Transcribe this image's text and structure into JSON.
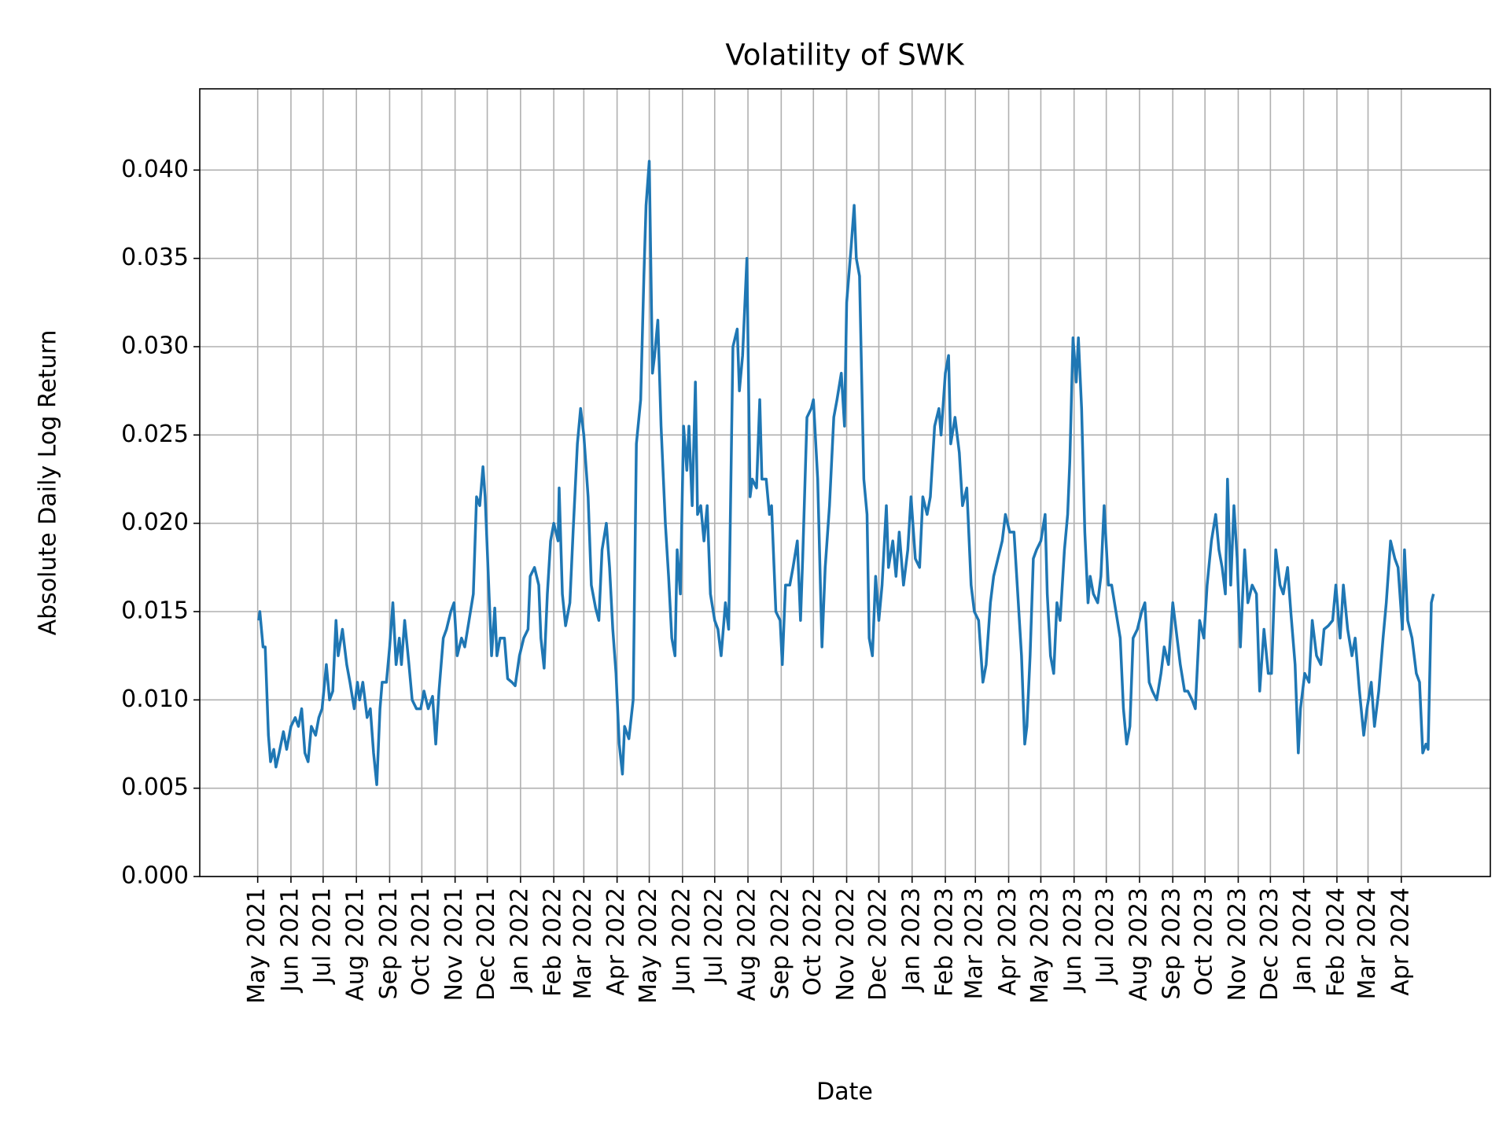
{
  "chart_data": {
    "type": "line",
    "title": "Volatility of SWK",
    "x_label": "Date",
    "y_label": "Absolute Daily Log Return",
    "color": "#1f77b4",
    "grid": true,
    "xlim": [
      -54,
      1149
    ],
    "ylim": [
      0,
      0.0446
    ],
    "xticks": [
      {
        "value": 0,
        "label": "May 2021"
      },
      {
        "value": 31,
        "label": "Jun 2021"
      },
      {
        "value": 61,
        "label": "Jul 2021"
      },
      {
        "value": 92,
        "label": "Aug 2021"
      },
      {
        "value": 123,
        "label": "Sep 2021"
      },
      {
        "value": 153,
        "label": "Oct 2021"
      },
      {
        "value": 184,
        "label": "Nov 2021"
      },
      {
        "value": 214,
        "label": "Dec 2021"
      },
      {
        "value": 245,
        "label": "Jan 2022"
      },
      {
        "value": 276,
        "label": "Feb 2022"
      },
      {
        "value": 304,
        "label": "Mar 2022"
      },
      {
        "value": 335,
        "label": "Apr 2022"
      },
      {
        "value": 365,
        "label": "May 2022"
      },
      {
        "value": 396,
        "label": "Jun 2022"
      },
      {
        "value": 426,
        "label": "Jul 2022"
      },
      {
        "value": 457,
        "label": "Aug 2022"
      },
      {
        "value": 488,
        "label": "Sep 2022"
      },
      {
        "value": 518,
        "label": "Oct 2022"
      },
      {
        "value": 549,
        "label": "Nov 2022"
      },
      {
        "value": 579,
        "label": "Dec 2022"
      },
      {
        "value": 610,
        "label": "Jan 2023"
      },
      {
        "value": 641,
        "label": "Feb 2023"
      },
      {
        "value": 669,
        "label": "Mar 2023"
      },
      {
        "value": 700,
        "label": "Apr 2023"
      },
      {
        "value": 730,
        "label": "May 2023"
      },
      {
        "value": 761,
        "label": "Jun 2023"
      },
      {
        "value": 791,
        "label": "Jul 2023"
      },
      {
        "value": 822,
        "label": "Aug 2023"
      },
      {
        "value": 853,
        "label": "Sep 2023"
      },
      {
        "value": 883,
        "label": "Oct 2023"
      },
      {
        "value": 914,
        "label": "Nov 2023"
      },
      {
        "value": 944,
        "label": "Dec 2023"
      },
      {
        "value": 975,
        "label": "Jan 2024"
      },
      {
        "value": 1006,
        "label": "Feb 2024"
      },
      {
        "value": 1035,
        "label": "Mar 2024"
      },
      {
        "value": 1066,
        "label": "Apr 2024"
      }
    ],
    "yticks": [
      {
        "value": 0,
        "label": "0.000"
      },
      {
        "value": 0.005,
        "label": "0.005"
      },
      {
        "value": 0.01,
        "label": "0.010"
      },
      {
        "value": 0.015,
        "label": "0.015"
      },
      {
        "value": 0.02,
        "label": "0.020"
      },
      {
        "value": 0.025,
        "label": "0.025"
      },
      {
        "value": 0.03,
        "label": "0.030"
      },
      {
        "value": 0.035,
        "label": "0.035"
      },
      {
        "value": 0.04,
        "label": "0.040"
      }
    ],
    "x": [
      1,
      2,
      5,
      7,
      10,
      12,
      15,
      17,
      20,
      24,
      27,
      31,
      35,
      38,
      41,
      44,
      47,
      50,
      54,
      57,
      60,
      64,
      67,
      70,
      73,
      75,
      79,
      83,
      86,
      90,
      93,
      95,
      98,
      102,
      105,
      108,
      111,
      114,
      116,
      120,
      123,
      126,
      129,
      132,
      134,
      137,
      141,
      144,
      148,
      152,
      155,
      159,
      163,
      166,
      169,
      173,
      176,
      180,
      183,
      186,
      190,
      193,
      197,
      201,
      204,
      207,
      210,
      212,
      215,
      218,
      221,
      223,
      226,
      230,
      233,
      237,
      240,
      244,
      248,
      252,
      254,
      258,
      262,
      264,
      267,
      270,
      273,
      276,
      280,
      281,
      284,
      287,
      291,
      294,
      298,
      301,
      304,
      308,
      311,
      315,
      318,
      321,
      325,
      328,
      331,
      334,
      337,
      340,
      342,
      346,
      350,
      353,
      357,
      360,
      362,
      365,
      368,
      370,
      373,
      376,
      380,
      383,
      386,
      389,
      391,
      394,
      397,
      400,
      402,
      405,
      408,
      410,
      413,
      416,
      419,
      422,
      426,
      429,
      432,
      436,
      439,
      443,
      447,
      449,
      452,
      456,
      459,
      461,
      465,
      468,
      470,
      474,
      477,
      479,
      483,
      487,
      489,
      492,
      496,
      499,
      503,
      506,
      508,
      512,
      516,
      518,
      522,
      526,
      529,
      533,
      537,
      540,
      544,
      547,
      549,
      553,
      556,
      558,
      561,
      565,
      568,
      570,
      573,
      576,
      579,
      582,
      586,
      588,
      592,
      595,
      598,
      602,
      606,
      609,
      613,
      617,
      620,
      624,
      627,
      631,
      635,
      637,
      641,
      644,
      646,
      650,
      654,
      657,
      661,
      665,
      668,
      672,
      676,
      679,
      683,
      686,
      690,
      694,
      697,
      701,
      705,
      708,
      712,
      715,
      717,
      720,
      723,
      726,
      730,
      734,
      736,
      739,
      742,
      745,
      748,
      752,
      755,
      757,
      760,
      763,
      765,
      768,
      771,
      774,
      776,
      779,
      783,
      786,
      789,
      793,
      796,
      800,
      804,
      807,
      810,
      813,
      816,
      820,
      824,
      827,
      831,
      834,
      838,
      842,
      845,
      849,
      853,
      856,
      860,
      864,
      867,
      871,
      874,
      878,
      882,
      885,
      889,
      893,
      896,
      899,
      902,
      904,
      907,
      910,
      913,
      916,
      920,
      923,
      927,
      931,
      934,
      938,
      942,
      945,
      949,
      953,
      956,
      960,
      963,
      967,
      970,
      972,
      976,
      980,
      983,
      987,
      991,
      994,
      998,
      1002,
      1005,
      1009,
      1012,
      1016,
      1020,
      1023,
      1027,
      1031,
      1034,
      1038,
      1041,
      1045,
      1049,
      1052,
      1056,
      1060,
      1063,
      1067,
      1069,
      1072,
      1076,
      1080,
      1083,
      1086,
      1089,
      1091,
      1094,
      1096
    ],
    "values": [
      0.0145,
      0.015,
      0.013,
      0.013,
      0.008,
      0.0065,
      0.0072,
      0.0062,
      0.007,
      0.0082,
      0.0072,
      0.0085,
      0.009,
      0.0085,
      0.0095,
      0.007,
      0.0065,
      0.0085,
      0.008,
      0.009,
      0.0095,
      0.012,
      0.01,
      0.0105,
      0.0145,
      0.0125,
      0.014,
      0.012,
      0.011,
      0.0095,
      0.011,
      0.01,
      0.011,
      0.009,
      0.0095,
      0.007,
      0.0052,
      0.0095,
      0.011,
      0.011,
      0.013,
      0.0155,
      0.012,
      0.0135,
      0.012,
      0.0145,
      0.012,
      0.01,
      0.0095,
      0.0095,
      0.0105,
      0.0095,
      0.0102,
      0.0075,
      0.0105,
      0.0135,
      0.014,
      0.015,
      0.0155,
      0.0125,
      0.0135,
      0.013,
      0.0145,
      0.016,
      0.0215,
      0.021,
      0.0232,
      0.0215,
      0.017,
      0.0125,
      0.0152,
      0.0125,
      0.0135,
      0.0135,
      0.0112,
      0.011,
      0.0108,
      0.0125,
      0.0135,
      0.014,
      0.017,
      0.0175,
      0.0165,
      0.0135,
      0.0118,
      0.016,
      0.019,
      0.02,
      0.019,
      0.022,
      0.016,
      0.0142,
      0.0155,
      0.0195,
      0.0245,
      0.0265,
      0.025,
      0.0215,
      0.0165,
      0.0152,
      0.0145,
      0.0185,
      0.02,
      0.0175,
      0.014,
      0.0115,
      0.0075,
      0.0058,
      0.0085,
      0.0078,
      0.01,
      0.0245,
      0.027,
      0.034,
      0.038,
      0.0405,
      0.0285,
      0.0295,
      0.0315,
      0.0255,
      0.02,
      0.017,
      0.0135,
      0.0125,
      0.0185,
      0.016,
      0.0255,
      0.023,
      0.0255,
      0.021,
      0.028,
      0.0205,
      0.021,
      0.019,
      0.021,
      0.016,
      0.0145,
      0.014,
      0.0125,
      0.0155,
      0.014,
      0.03,
      0.031,
      0.0275,
      0.0295,
      0.035,
      0.0215,
      0.0225,
      0.022,
      0.027,
      0.0225,
      0.0225,
      0.0205,
      0.021,
      0.015,
      0.0145,
      0.012,
      0.0165,
      0.0165,
      0.0175,
      0.019,
      0.0145,
      0.018,
      0.026,
      0.0265,
      0.027,
      0.0225,
      0.013,
      0.0175,
      0.021,
      0.026,
      0.027,
      0.0285,
      0.0255,
      0.0325,
      0.0355,
      0.038,
      0.035,
      0.034,
      0.0225,
      0.0205,
      0.0135,
      0.0125,
      0.017,
      0.0145,
      0.0165,
      0.021,
      0.0175,
      0.019,
      0.017,
      0.0195,
      0.0165,
      0.0185,
      0.0215,
      0.018,
      0.0175,
      0.0215,
      0.0205,
      0.0215,
      0.0255,
      0.0265,
      0.025,
      0.0285,
      0.0295,
      0.0245,
      0.026,
      0.024,
      0.021,
      0.022,
      0.0165,
      0.015,
      0.0145,
      0.011,
      0.012,
      0.0155,
      0.017,
      0.018,
      0.019,
      0.0205,
      0.0195,
      0.0195,
      0.0165,
      0.0125,
      0.0075,
      0.0085,
      0.0125,
      0.018,
      0.0185,
      0.019,
      0.0205,
      0.016,
      0.0125,
      0.0115,
      0.0155,
      0.0145,
      0.0185,
      0.0205,
      0.0235,
      0.0305,
      0.028,
      0.0305,
      0.0265,
      0.0195,
      0.0155,
      0.017,
      0.016,
      0.0155,
      0.017,
      0.021,
      0.0165,
      0.0165,
      0.015,
      0.0135,
      0.0095,
      0.0075,
      0.0085,
      0.0135,
      0.014,
      0.015,
      0.0155,
      0.011,
      0.0105,
      0.01,
      0.0115,
      0.013,
      0.012,
      0.0155,
      0.014,
      0.012,
      0.0105,
      0.0105,
      0.01,
      0.0095,
      0.0145,
      0.0135,
      0.0165,
      0.019,
      0.0205,
      0.0185,
      0.0175,
      0.016,
      0.0225,
      0.0165,
      0.021,
      0.018,
      0.013,
      0.0185,
      0.0155,
      0.0165,
      0.016,
      0.0105,
      0.014,
      0.0115,
      0.0115,
      0.0185,
      0.0165,
      0.016,
      0.0175,
      0.015,
      0.012,
      0.007,
      0.0095,
      0.0115,
      0.011,
      0.0145,
      0.0125,
      0.012,
      0.014,
      0.0142,
      0.0145,
      0.0165,
      0.0135,
      0.0165,
      0.014,
      0.0125,
      0.0135,
      0.0105,
      0.008,
      0.0095,
      0.011,
      0.0085,
      0.0105,
      0.0135,
      0.0155,
      0.019,
      0.018,
      0.0175,
      0.014,
      0.0185,
      0.0145,
      0.0135,
      0.0115,
      0.011,
      0.007,
      0.0075,
      0.0072,
      0.0155,
      0.016
    ]
  }
}
